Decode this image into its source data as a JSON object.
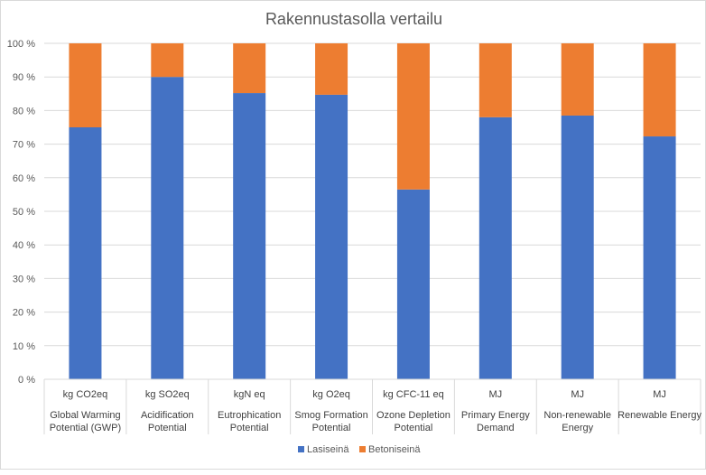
{
  "chart_data": {
    "type": "bar",
    "stacked": true,
    "stacking": "percent",
    "title": "Rakennustasolla vertailu",
    "ylim": [
      0,
      100
    ],
    "yticks": [
      "0 %",
      "10 %",
      "20 %",
      "30 %",
      "40 %",
      "50 %",
      "60 %",
      "70 %",
      "80 %",
      "90 %",
      "100 %"
    ],
    "grid": true,
    "legend_position": "bottom",
    "categories": [
      {
        "unit": "kg CO2eq",
        "label": "Global Warming Potential (GWP)",
        "lines": [
          "Global Warming",
          "Potential (GWP)"
        ]
      },
      {
        "unit": "kg SO2eq",
        "label": "Acidification Potential",
        "lines": [
          "Acidification",
          "Potential"
        ]
      },
      {
        "unit": "kgN eq",
        "label": "Eutrophication Potential",
        "lines": [
          "Eutrophication",
          "Potential"
        ]
      },
      {
        "unit": "kg O2eq",
        "label": "Smog Formation Potential",
        "lines": [
          "Smog Formation",
          "Potential"
        ]
      },
      {
        "unit": "kg CFC-11 eq",
        "label": "Ozone Depletion Potential",
        "lines": [
          "Ozone Depletion",
          "Potential"
        ]
      },
      {
        "unit": "MJ",
        "label": "Primary Energy Demand",
        "lines": [
          "Primary Energy",
          "Demand"
        ]
      },
      {
        "unit": "MJ",
        "label": "Non-renewable Energy",
        "lines": [
          "Non-renewable",
          "Energy"
        ]
      },
      {
        "unit": "MJ",
        "label": "Renewable Energy",
        "lines": [
          "Renewable Energy"
        ]
      }
    ],
    "series": [
      {
        "name": "Lasiseinä",
        "color": "#4472c4",
        "values": [
          75,
          90,
          85.2,
          84.7,
          56.5,
          78,
          78.5,
          72.3
        ]
      },
      {
        "name": "Betoniseinä",
        "color": "#ed7d31",
        "values": [
          25,
          10,
          14.8,
          15.3,
          43.5,
          22,
          21.5,
          27.7
        ]
      }
    ]
  }
}
